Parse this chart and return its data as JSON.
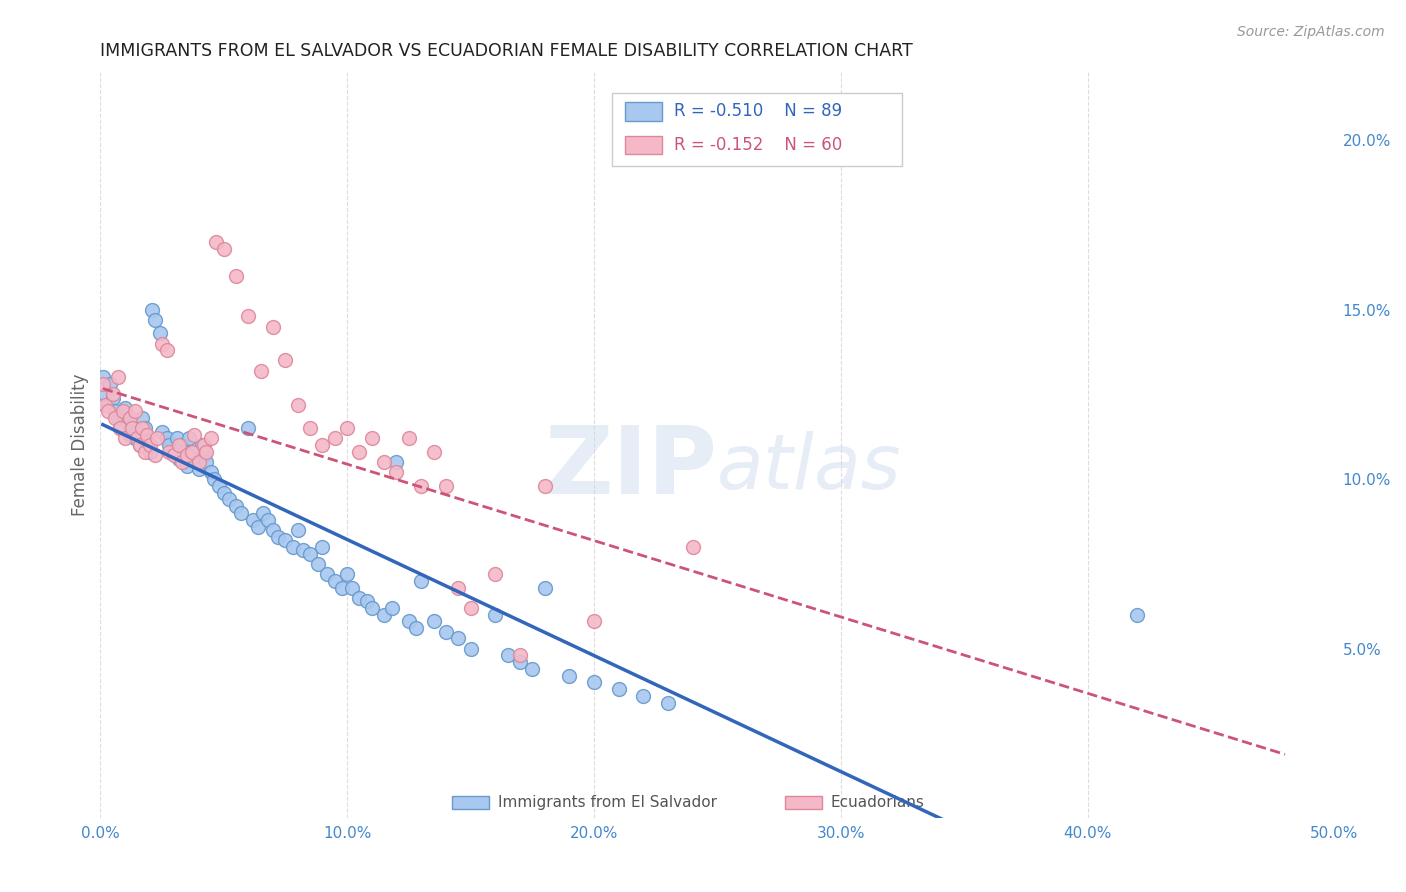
{
  "title": "IMMIGRANTS FROM EL SALVADOR VS ECUADORIAN FEMALE DISABILITY CORRELATION CHART",
  "source": "Source: ZipAtlas.com",
  "ylabel": "Female Disability",
  "xlim": [
    0.0,
    0.5
  ],
  "ylim": [
    0.0,
    0.22
  ],
  "xticks": [
    0.0,
    0.1,
    0.2,
    0.3,
    0.4,
    0.5
  ],
  "yticks_right": [
    0.05,
    0.1,
    0.15,
    0.2
  ],
  "yticklabels_right": [
    "5.0%",
    "10.0%",
    "15.0%",
    "20.0%"
  ],
  "legend_blue_r": "-0.510",
  "legend_blue_n": "89",
  "legend_pink_r": "-0.152",
  "legend_pink_n": "60",
  "blue_color": "#A8C8F0",
  "pink_color": "#F5B8C8",
  "blue_edge": "#6699CC",
  "pink_edge": "#DD8899",
  "blue_line_color": "#3366BB",
  "pink_line_color": "#CC5577",
  "watermark": "ZIPatlas",
  "background_color": "#FFFFFF",
  "grid_color": "#DDDDDD",
  "blue_points": [
    [
      0.001,
      0.13
    ],
    [
      0.002,
      0.125
    ],
    [
      0.003,
      0.122
    ],
    [
      0.004,
      0.128
    ],
    [
      0.005,
      0.124
    ],
    [
      0.006,
      0.12
    ],
    [
      0.007,
      0.118
    ],
    [
      0.008,
      0.115
    ],
    [
      0.009,
      0.119
    ],
    [
      0.01,
      0.121
    ],
    [
      0.011,
      0.117
    ],
    [
      0.012,
      0.113
    ],
    [
      0.013,
      0.116
    ],
    [
      0.014,
      0.112
    ],
    [
      0.015,
      0.114
    ],
    [
      0.016,
      0.11
    ],
    [
      0.017,
      0.118
    ],
    [
      0.018,
      0.115
    ],
    [
      0.019,
      0.111
    ],
    [
      0.02,
      0.108
    ],
    [
      0.021,
      0.15
    ],
    [
      0.022,
      0.147
    ],
    [
      0.024,
      0.143
    ],
    [
      0.025,
      0.114
    ],
    [
      0.027,
      0.112
    ],
    [
      0.028,
      0.11
    ],
    [
      0.03,
      0.108
    ],
    [
      0.031,
      0.112
    ],
    [
      0.032,
      0.106
    ],
    [
      0.033,
      0.11
    ],
    [
      0.034,
      0.108
    ],
    [
      0.035,
      0.104
    ],
    [
      0.036,
      0.112
    ],
    [
      0.037,
      0.106
    ],
    [
      0.038,
      0.108
    ],
    [
      0.04,
      0.103
    ],
    [
      0.041,
      0.11
    ],
    [
      0.042,
      0.107
    ],
    [
      0.043,
      0.105
    ],
    [
      0.045,
      0.102
    ],
    [
      0.046,
      0.1
    ],
    [
      0.048,
      0.098
    ],
    [
      0.05,
      0.096
    ],
    [
      0.052,
      0.094
    ],
    [
      0.055,
      0.092
    ],
    [
      0.057,
      0.09
    ],
    [
      0.06,
      0.115
    ],
    [
      0.062,
      0.088
    ],
    [
      0.064,
      0.086
    ],
    [
      0.066,
      0.09
    ],
    [
      0.068,
      0.088
    ],
    [
      0.07,
      0.085
    ],
    [
      0.072,
      0.083
    ],
    [
      0.075,
      0.082
    ],
    [
      0.078,
      0.08
    ],
    [
      0.08,
      0.085
    ],
    [
      0.082,
      0.079
    ],
    [
      0.085,
      0.078
    ],
    [
      0.088,
      0.075
    ],
    [
      0.09,
      0.08
    ],
    [
      0.092,
      0.072
    ],
    [
      0.095,
      0.07
    ],
    [
      0.098,
      0.068
    ],
    [
      0.1,
      0.072
    ],
    [
      0.102,
      0.068
    ],
    [
      0.105,
      0.065
    ],
    [
      0.108,
      0.064
    ],
    [
      0.11,
      0.062
    ],
    [
      0.115,
      0.06
    ],
    [
      0.118,
      0.062
    ],
    [
      0.12,
      0.105
    ],
    [
      0.125,
      0.058
    ],
    [
      0.128,
      0.056
    ],
    [
      0.13,
      0.07
    ],
    [
      0.135,
      0.058
    ],
    [
      0.14,
      0.055
    ],
    [
      0.145,
      0.053
    ],
    [
      0.15,
      0.05
    ],
    [
      0.16,
      0.06
    ],
    [
      0.165,
      0.048
    ],
    [
      0.17,
      0.046
    ],
    [
      0.175,
      0.044
    ],
    [
      0.18,
      0.068
    ],
    [
      0.19,
      0.042
    ],
    [
      0.2,
      0.04
    ],
    [
      0.21,
      0.038
    ],
    [
      0.22,
      0.036
    ],
    [
      0.23,
      0.034
    ],
    [
      0.42,
      0.06
    ]
  ],
  "pink_points": [
    [
      0.001,
      0.128
    ],
    [
      0.002,
      0.122
    ],
    [
      0.003,
      0.12
    ],
    [
      0.005,
      0.125
    ],
    [
      0.006,
      0.118
    ],
    [
      0.007,
      0.13
    ],
    [
      0.008,
      0.115
    ],
    [
      0.009,
      0.12
    ],
    [
      0.01,
      0.112
    ],
    [
      0.012,
      0.118
    ],
    [
      0.013,
      0.115
    ],
    [
      0.014,
      0.12
    ],
    [
      0.015,
      0.112
    ],
    [
      0.016,
      0.11
    ],
    [
      0.017,
      0.115
    ],
    [
      0.018,
      0.108
    ],
    [
      0.019,
      0.113
    ],
    [
      0.02,
      0.11
    ],
    [
      0.022,
      0.107
    ],
    [
      0.023,
      0.112
    ],
    [
      0.025,
      0.14
    ],
    [
      0.027,
      0.138
    ],
    [
      0.028,
      0.108
    ],
    [
      0.03,
      0.107
    ],
    [
      0.032,
      0.11
    ],
    [
      0.033,
      0.105
    ],
    [
      0.035,
      0.107
    ],
    [
      0.037,
      0.108
    ],
    [
      0.038,
      0.113
    ],
    [
      0.04,
      0.105
    ],
    [
      0.042,
      0.11
    ],
    [
      0.043,
      0.108
    ],
    [
      0.045,
      0.112
    ],
    [
      0.047,
      0.17
    ],
    [
      0.05,
      0.168
    ],
    [
      0.055,
      0.16
    ],
    [
      0.06,
      0.148
    ],
    [
      0.065,
      0.132
    ],
    [
      0.07,
      0.145
    ],
    [
      0.075,
      0.135
    ],
    [
      0.08,
      0.122
    ],
    [
      0.085,
      0.115
    ],
    [
      0.09,
      0.11
    ],
    [
      0.095,
      0.112
    ],
    [
      0.1,
      0.115
    ],
    [
      0.105,
      0.108
    ],
    [
      0.11,
      0.112
    ],
    [
      0.115,
      0.105
    ],
    [
      0.12,
      0.102
    ],
    [
      0.125,
      0.112
    ],
    [
      0.13,
      0.098
    ],
    [
      0.135,
      0.108
    ],
    [
      0.14,
      0.098
    ],
    [
      0.145,
      0.068
    ],
    [
      0.15,
      0.062
    ],
    [
      0.16,
      0.072
    ],
    [
      0.17,
      0.048
    ],
    [
      0.18,
      0.098
    ],
    [
      0.2,
      0.058
    ],
    [
      0.24,
      0.08
    ]
  ]
}
